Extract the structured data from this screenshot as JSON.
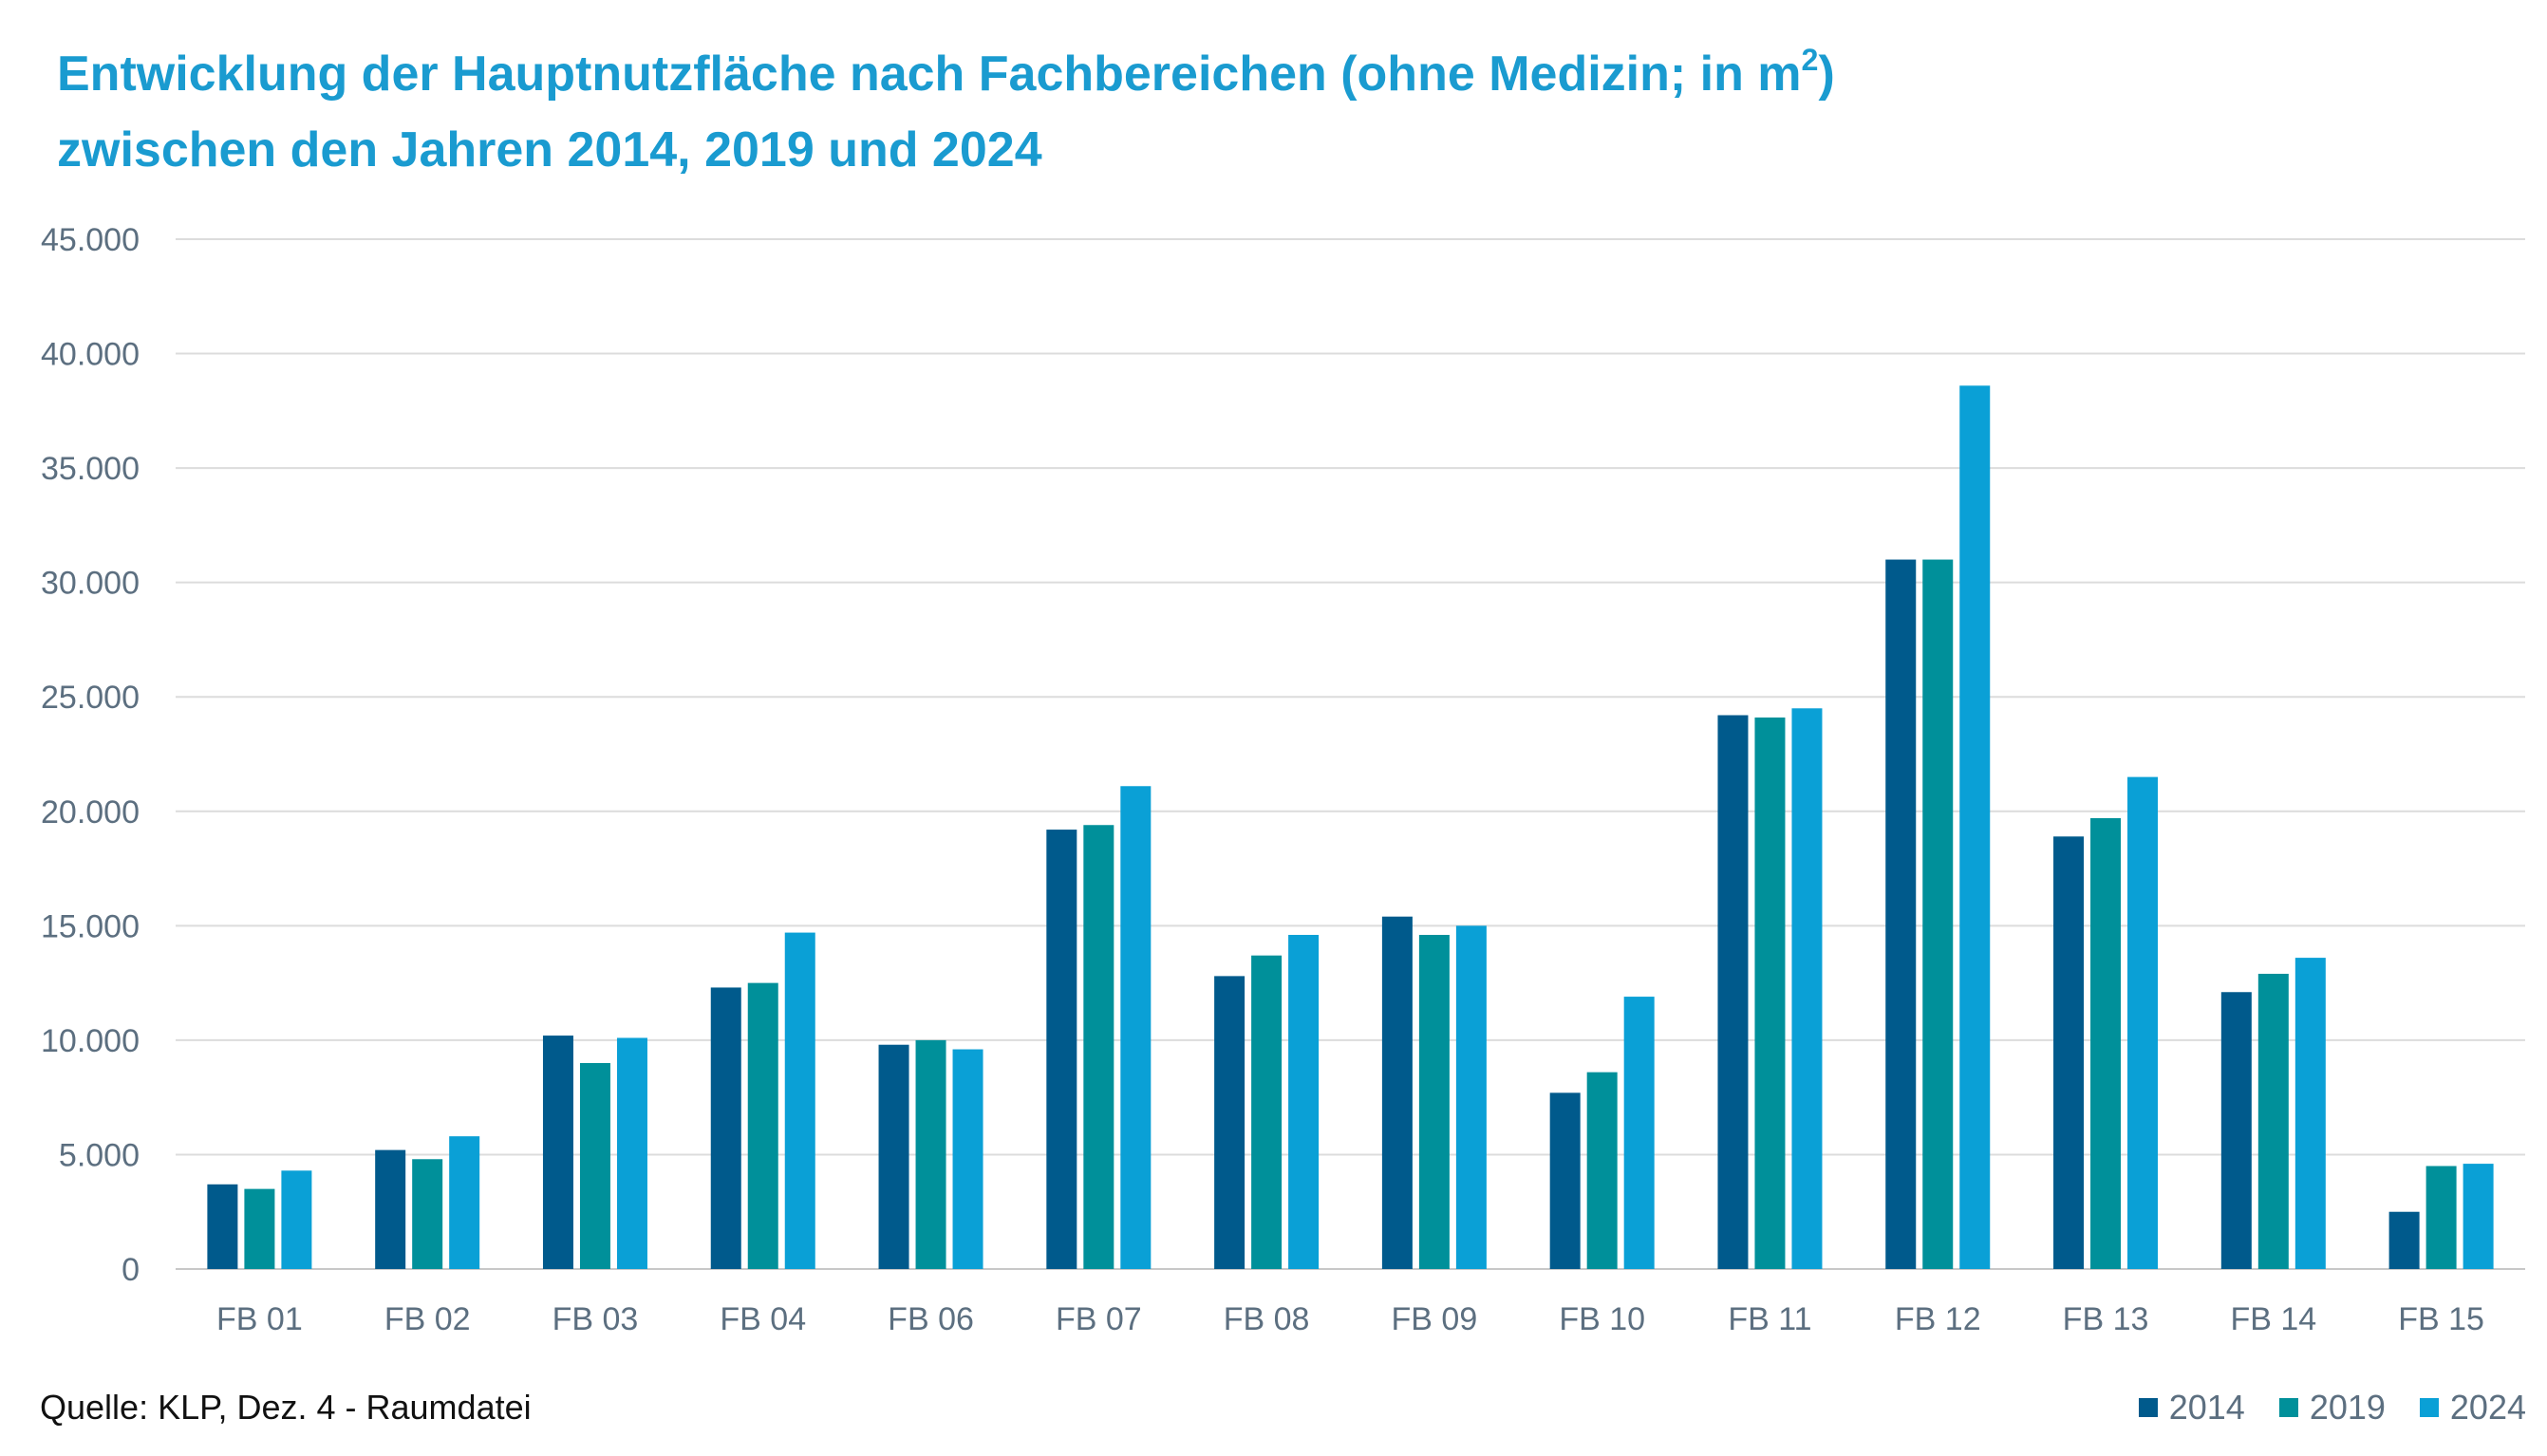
{
  "title": {
    "line1_prefix": "Entwicklung der Hauptnutzfläche nach Fachbereichen (ohne Medizin; in m",
    "line1_sup": "2",
    "line1_suffix": ")",
    "line2": "zwischen den Jahren 2014, 2019 und 2024"
  },
  "source": "Quelle: KLP, Dez. 4 - Raumdatei",
  "chart_data": {
    "type": "bar",
    "title": "Entwicklung der Hauptnutzfläche nach Fachbereichen (ohne Medizin; in m²) zwischen den Jahren 2014, 2019 und 2024",
    "xlabel": "",
    "ylabel": "",
    "ylim": [
      0,
      45000
    ],
    "yticks": [
      0,
      5000,
      10000,
      15000,
      20000,
      25000,
      30000,
      35000,
      40000,
      45000
    ],
    "ytick_labels": [
      "0",
      "5.000",
      "10.000",
      "15.000",
      "20.000",
      "25.000",
      "30.000",
      "35.000",
      "40.000",
      "45.000"
    ],
    "grid": true,
    "legend_position": "bottom-right",
    "categories": [
      "FB 01",
      "FB 02",
      "FB 03",
      "FB 04",
      "FB 06",
      "FB 07",
      "FB 08",
      "FB 09",
      "FB 10",
      "FB 11",
      "FB 12",
      "FB 13",
      "FB 14",
      "FB 15"
    ],
    "series": [
      {
        "name": "2014",
        "color": "#005a8c",
        "values": [
          3700,
          5200,
          10200,
          12300,
          9800,
          19200,
          12800,
          15400,
          7700,
          24200,
          31000,
          18900,
          12100,
          2500
        ]
      },
      {
        "name": "2019",
        "color": "#00909a",
        "values": [
          3500,
          4800,
          9000,
          12500,
          10000,
          19400,
          13700,
          14600,
          8600,
          24100,
          31000,
          19700,
          12900,
          4500
        ]
      },
      {
        "name": "2024",
        "color": "#0aa0d6",
        "values": [
          4300,
          5800,
          10100,
          14700,
          9600,
          21100,
          14600,
          15000,
          11900,
          24500,
          38600,
          21500,
          13600,
          4600
        ]
      }
    ]
  }
}
